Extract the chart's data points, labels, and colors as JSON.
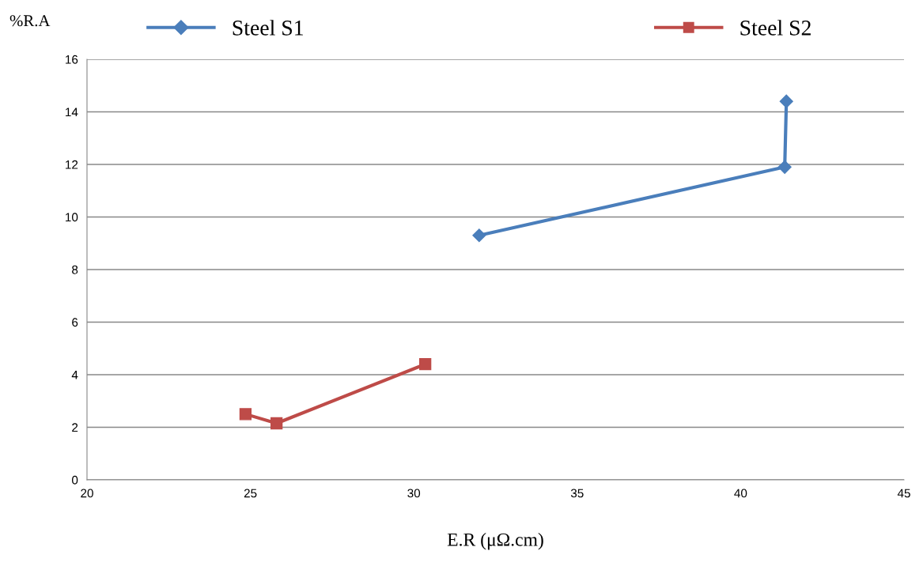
{
  "chart_data": {
    "type": "line",
    "xlabel": "E.R (μΩ.cm)",
    "ylabel": "%R.A",
    "series": [
      {
        "name": "Steel S1",
        "color": "#4a7ebb",
        "marker": "diamond",
        "x": [
          32.0,
          41.35,
          41.4
        ],
        "values": [
          9.3,
          11.9,
          14.4
        ]
      },
      {
        "name": "Steel S2",
        "color": "#be4b48",
        "marker": "square",
        "x": [
          24.85,
          25.8,
          30.35
        ],
        "values": [
          2.5,
          2.15,
          4.4
        ]
      }
    ],
    "xlim": [
      20,
      45
    ],
    "xticks": [
      20,
      25,
      30,
      35,
      40,
      45
    ],
    "ylim": [
      0,
      16
    ],
    "yticks": [
      0,
      2,
      4,
      6,
      8,
      10,
      12,
      14,
      16
    ],
    "grid": "y",
    "legend": "top",
    "line_style": "solid"
  }
}
